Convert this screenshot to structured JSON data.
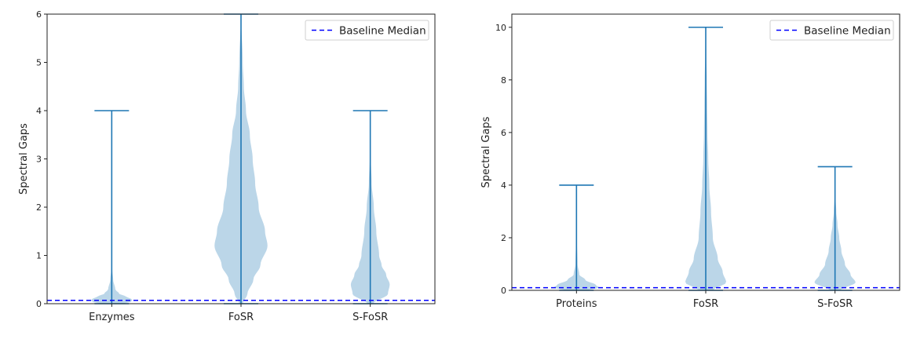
{
  "chart_data": [
    {
      "type": "violin",
      "ylabel": "Spectral Gaps",
      "ylim": [
        0,
        6
      ],
      "yticks": [
        0,
        1,
        2,
        3,
        4,
        5,
        6
      ],
      "legend": {
        "label": "Baseline Median",
        "placement": "top-right"
      },
      "baseline_median": 0.07,
      "categories": [
        "Enzymes",
        "FoSR",
        "S-FoSR"
      ],
      "series": [
        {
          "name": "Enzymes",
          "min": 0,
          "max": 4,
          "density": [
            [
              0,
              0.3
            ],
            [
              0.05,
              0.6
            ],
            [
              0.1,
              0.55
            ],
            [
              0.15,
              0.4
            ],
            [
              0.2,
              0.22
            ],
            [
              0.3,
              0.1
            ],
            [
              0.5,
              0.04
            ],
            [
              0.7,
              0.015
            ],
            [
              1.0,
              0.005
            ],
            [
              4.0,
              0.0
            ]
          ]
        },
        {
          "name": "FoSR",
          "min": 0,
          "max": 6,
          "density": [
            [
              0,
              0.05
            ],
            [
              0.2,
              0.18
            ],
            [
              0.5,
              0.35
            ],
            [
              0.8,
              0.55
            ],
            [
              1.2,
              0.75
            ],
            [
              1.5,
              0.68
            ],
            [
              2.0,
              0.5
            ],
            [
              2.5,
              0.4
            ],
            [
              3.0,
              0.33
            ],
            [
              3.5,
              0.25
            ],
            [
              4.0,
              0.14
            ],
            [
              4.5,
              0.08
            ],
            [
              5.0,
              0.05
            ],
            [
              6.0,
              0.0
            ]
          ]
        },
        {
          "name": "S-FoSR",
          "min": 0,
          "max": 4,
          "density": [
            [
              0,
              0.08
            ],
            [
              0.2,
              0.5
            ],
            [
              0.4,
              0.55
            ],
            [
              0.6,
              0.45
            ],
            [
              0.8,
              0.32
            ],
            [
              1.0,
              0.25
            ],
            [
              1.5,
              0.17
            ],
            [
              2.0,
              0.1
            ],
            [
              2.5,
              0.04
            ],
            [
              3.0,
              0.015
            ],
            [
              4.0,
              0.0
            ]
          ]
        }
      ]
    },
    {
      "type": "violin",
      "ylabel": "Spectral Gaps",
      "ylim": [
        0,
        10.5
      ],
      "yticks": [
        0,
        2,
        4,
        6,
        8,
        10
      ],
      "legend": {
        "label": "Baseline Median",
        "placement": "top-right"
      },
      "baseline_median": 0.1,
      "categories": [
        "Proteins",
        "FoSR",
        "S-FoSR"
      ],
      "series": [
        {
          "name": "Proteins",
          "min": 0,
          "max": 4,
          "density": [
            [
              0,
              0.3
            ],
            [
              0.1,
              0.65
            ],
            [
              0.2,
              0.55
            ],
            [
              0.4,
              0.25
            ],
            [
              0.6,
              0.08
            ],
            [
              1.0,
              0.03
            ],
            [
              2.0,
              0.01
            ],
            [
              4.0,
              0.0
            ]
          ]
        },
        {
          "name": "FoSR",
          "min": 0,
          "max": 10,
          "density": [
            [
              0,
              0.2
            ],
            [
              0.3,
              0.58
            ],
            [
              0.7,
              0.48
            ],
            [
              1.2,
              0.34
            ],
            [
              2.0,
              0.2
            ],
            [
              3.0,
              0.15
            ],
            [
              4.0,
              0.1
            ],
            [
              5.0,
              0.07
            ],
            [
              6.0,
              0.05
            ],
            [
              7.0,
              0.04
            ],
            [
              8.0,
              0.03
            ],
            [
              9.0,
              0.015
            ],
            [
              10.0,
              0.0
            ]
          ]
        },
        {
          "name": "S-FoSR",
          "min": 0,
          "max": 4.7,
          "density": [
            [
              0,
              0.15
            ],
            [
              0.3,
              0.58
            ],
            [
              0.6,
              0.44
            ],
            [
              1.0,
              0.28
            ],
            [
              1.5,
              0.18
            ],
            [
              2.0,
              0.12
            ],
            [
              2.5,
              0.07
            ],
            [
              3.0,
              0.035
            ],
            [
              3.5,
              0.015
            ],
            [
              4.7,
              0.0
            ]
          ]
        }
      ]
    }
  ]
}
